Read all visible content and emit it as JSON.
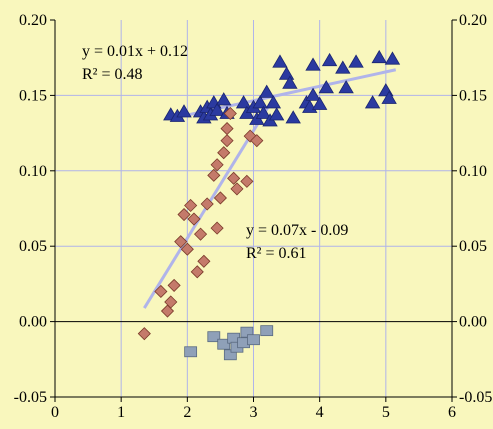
{
  "chart_data": {
    "type": "scatter",
    "title": "",
    "xlabel": "",
    "ylabel": "",
    "xlim": [
      0,
      6
    ],
    "ylim": [
      -0.05,
      0.2
    ],
    "x_ticks": [
      "0",
      "1",
      "2",
      "3",
      "4",
      "5",
      "6"
    ],
    "y_ticks": [
      "-0.05",
      "0.00",
      "0.05",
      "0.10",
      "0.15",
      "0.20"
    ],
    "y_ticks_right": [
      "-0.05",
      "0.00",
      "0.05",
      "0.10",
      "0.15",
      "0.20"
    ],
    "grid": true,
    "legend": "none",
    "colors": {
      "background": "#f9f7bd",
      "grid": "#b0b4ea",
      "triangle_series": "#2b3aa0",
      "diamond_series": "#c47a6a",
      "square_series": "#8fa0b8",
      "trendline": "#b0b4ea"
    },
    "series": [
      {
        "marker": "triangle",
        "points": [
          [
            1.75,
            0.137
          ],
          [
            1.85,
            0.136
          ],
          [
            1.95,
            0.139
          ],
          [
            2.2,
            0.139
          ],
          [
            2.25,
            0.135
          ],
          [
            2.3,
            0.142
          ],
          [
            2.35,
            0.137
          ],
          [
            2.4,
            0.145
          ],
          [
            2.45,
            0.14
          ],
          [
            2.55,
            0.147
          ],
          [
            2.6,
            0.138
          ],
          [
            2.85,
            0.145
          ],
          [
            2.9,
            0.138
          ],
          [
            3.0,
            0.142
          ],
          [
            3.05,
            0.134
          ],
          [
            3.1,
            0.145
          ],
          [
            3.15,
            0.138
          ],
          [
            3.2,
            0.152
          ],
          [
            3.25,
            0.133
          ],
          [
            3.3,
            0.145
          ],
          [
            3.35,
            0.137
          ],
          [
            3.4,
            0.172
          ],
          [
            3.5,
            0.164
          ],
          [
            3.55,
            0.158
          ],
          [
            3.6,
            0.135
          ],
          [
            3.8,
            0.145
          ],
          [
            3.85,
            0.142
          ],
          [
            3.9,
            0.17
          ],
          [
            3.9,
            0.15
          ],
          [
            4.0,
            0.144
          ],
          [
            4.1,
            0.155
          ],
          [
            4.15,
            0.173
          ],
          [
            4.35,
            0.168
          ],
          [
            4.4,
            0.155
          ],
          [
            4.55,
            0.172
          ],
          [
            4.8,
            0.145
          ],
          [
            4.9,
            0.175
          ],
          [
            5.0,
            0.153
          ],
          [
            5.05,
            0.148
          ],
          [
            5.1,
            0.174
          ]
        ]
      },
      {
        "marker": "diamond",
        "points": [
          [
            1.35,
            -0.008
          ],
          [
            1.6,
            0.02
          ],
          [
            1.7,
            0.007
          ],
          [
            1.75,
            0.013
          ],
          [
            1.8,
            0.024
          ],
          [
            1.9,
            0.053
          ],
          [
            1.95,
            0.071
          ],
          [
            2.0,
            0.048
          ],
          [
            2.05,
            0.077
          ],
          [
            2.1,
            0.068
          ],
          [
            2.15,
            0.033
          ],
          [
            2.2,
            0.058
          ],
          [
            2.25,
            0.04
          ],
          [
            2.3,
            0.078
          ],
          [
            2.4,
            0.097
          ],
          [
            2.45,
            0.062
          ],
          [
            2.45,
            0.104
          ],
          [
            2.5,
            0.082
          ],
          [
            2.55,
            0.112
          ],
          [
            2.6,
            0.12
          ],
          [
            2.6,
            0.128
          ],
          [
            2.65,
            0.138
          ],
          [
            2.7,
            0.095
          ],
          [
            2.75,
            0.088
          ],
          [
            2.9,
            0.093
          ],
          [
            2.95,
            0.123
          ],
          [
            3.05,
            0.12
          ]
        ]
      },
      {
        "marker": "square",
        "points": [
          [
            2.05,
            -0.02
          ],
          [
            2.4,
            -0.01
          ],
          [
            2.55,
            -0.015
          ],
          [
            2.65,
            -0.022
          ],
          [
            2.7,
            -0.011
          ],
          [
            2.75,
            -0.017
          ],
          [
            2.85,
            -0.014
          ],
          [
            2.9,
            -0.007
          ],
          [
            3.0,
            -0.012
          ],
          [
            3.2,
            -0.006
          ]
        ]
      }
    ],
    "trendlines": [
      {
        "x": [
          1.9,
          5.15
        ],
        "y": [
          0.136,
          0.167
        ]
      },
      {
        "x": [
          1.35,
          3.3
        ],
        "y": [
          0.009,
          0.148
        ]
      }
    ],
    "annotations": [
      {
        "line1": "y = 0.01x + 0.12",
        "line2": "R² = 0.48"
      },
      {
        "line1": "y = 0.07x - 0.09",
        "line2": "R² = 0.61"
      }
    ]
  }
}
